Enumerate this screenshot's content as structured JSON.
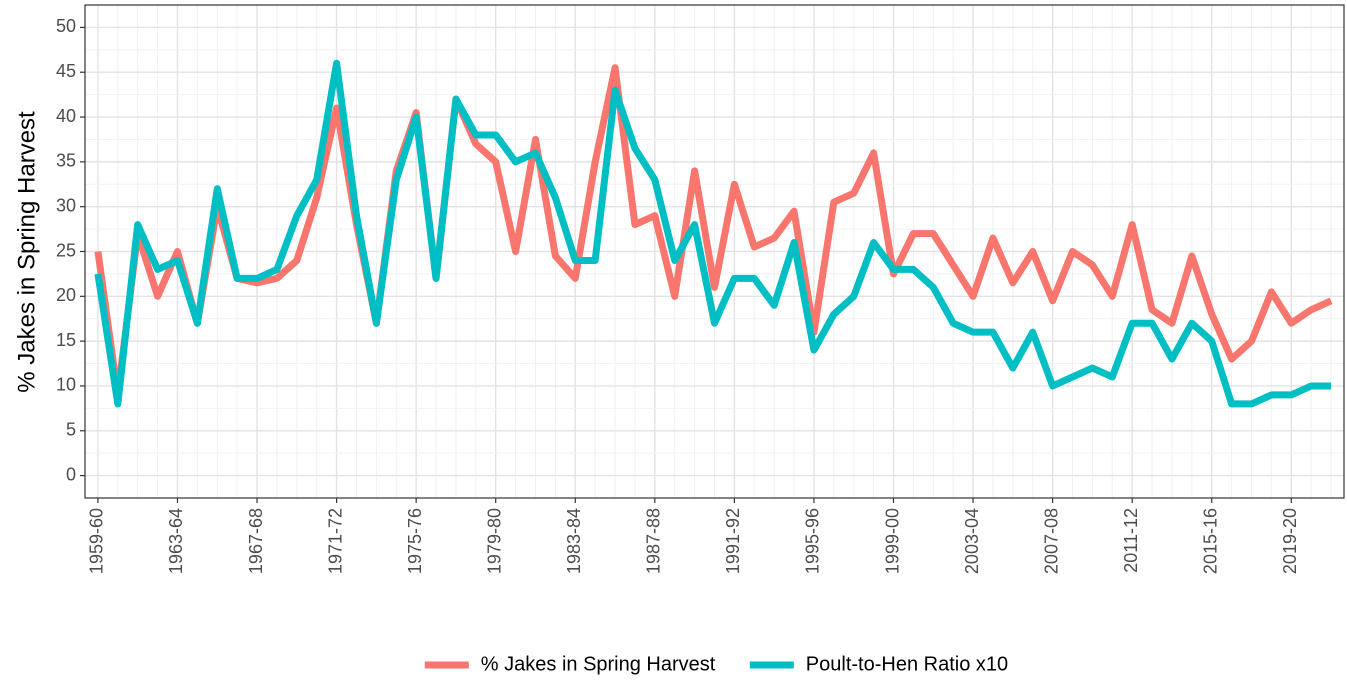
{
  "chart_data": {
    "type": "line",
    "y_label": "% Jakes in Spring Harvest",
    "categories": [
      "1959-60",
      null,
      null,
      null,
      "1963-64",
      null,
      null,
      null,
      "1967-68",
      null,
      null,
      null,
      "1971-72",
      null,
      null,
      null,
      "1975-76",
      null,
      null,
      null,
      "1979-80",
      null,
      null,
      null,
      "1983-84",
      null,
      null,
      null,
      "1987-88",
      null,
      null,
      null,
      "1991-92",
      null,
      null,
      null,
      "1995-96",
      null,
      null,
      null,
      "1999-00",
      null,
      null,
      null,
      "2003-04",
      null,
      null,
      null,
      "2007-08",
      null,
      null,
      null,
      "2011-12",
      null,
      null,
      null,
      "2015-16",
      null,
      null,
      null,
      "2019-20",
      null,
      null
    ],
    "series": [
      {
        "name": "% Jakes in Spring Harvest",
        "color": "#F8766D",
        "values": [
          25,
          9,
          27,
          20,
          25,
          17,
          30,
          22,
          21.5,
          22,
          24,
          31,
          41,
          28,
          17,
          34,
          40.5,
          22,
          42,
          37,
          35,
          25,
          37.5,
          24.5,
          22,
          35,
          45.5,
          28,
          29,
          20,
          34,
          21,
          32.5,
          25.5,
          26.5,
          29.5,
          16,
          30.5,
          31.5,
          36,
          22.5,
          27,
          27,
          23.5,
          20,
          26.5,
          21.5,
          25,
          19.5,
          25,
          23.5,
          20,
          28,
          18.5,
          17,
          24.5,
          18,
          13,
          15,
          20.5,
          17,
          18.5,
          19.5
        ]
      },
      {
        "name": "Poult-to-Hen Ratio x10",
        "color": "#00BFC4",
        "values": [
          22.5,
          8,
          28,
          23,
          24,
          17,
          32,
          22,
          22,
          23,
          29,
          33,
          46,
          29,
          17,
          33,
          40,
          22,
          42,
          38,
          38,
          35,
          36,
          31,
          24,
          24,
          43,
          36.5,
          33,
          24,
          28,
          17,
          22,
          22,
          19,
          26,
          14,
          18,
          20,
          26,
          23,
          23,
          21,
          17,
          16,
          16,
          12,
          16,
          10,
          11,
          12,
          11,
          17,
          17,
          13,
          17,
          15,
          8,
          8,
          9,
          9,
          10,
          10
        ]
      }
    ],
    "ylim": [
      -2.5,
      52.5
    ],
    "yticks": [
      0,
      5,
      10,
      15,
      20,
      25,
      30,
      35,
      40,
      45,
      50
    ],
    "grid": true,
    "legend": "bottom"
  }
}
